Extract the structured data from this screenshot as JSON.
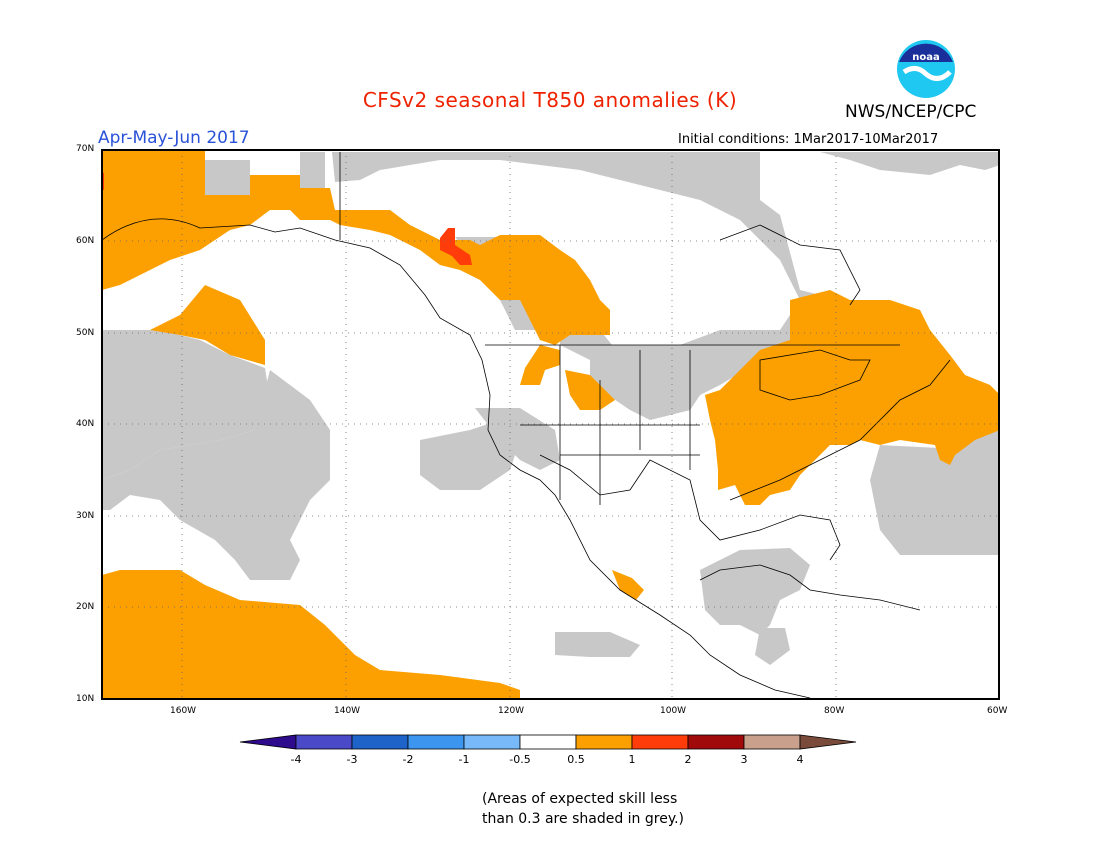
{
  "header": {
    "title": "CFSv2 seasonal T850 anomalies (K)",
    "agency": "NWS/NCEP/CPC",
    "period": "Apr-May-Jun 2017",
    "initial_conditions": "Initial conditions: 1Mar2017-10Mar2017",
    "logo_label": "noaa"
  },
  "map": {
    "lat_labels": [
      "70N",
      "60N",
      "50N",
      "40N",
      "30N",
      "20N",
      "10N"
    ],
    "lon_labels": [
      "160W",
      "140W",
      "120W",
      "100W",
      "80W",
      "60W"
    ],
    "region": "North America and eastern Pacific"
  },
  "legend": {
    "labels": [
      "-4",
      "-3",
      "-2",
      "-1",
      "-0.5",
      "0.5",
      "1",
      "2",
      "3",
      "4"
    ],
    "colors": [
      "#2e0a8c",
      "#4a4ac8",
      "#1e64c8",
      "#3c96f0",
      "#78b9fa",
      "#ffffff",
      "#fba000",
      "#ff3c0a",
      "#a00a0a",
      "#c8a08c",
      "#7a4a3a"
    ],
    "grey_color": "#c8c8c8",
    "orange_color": "#fba000",
    "red_color": "#ff3c0a"
  },
  "footnote": {
    "line1": "(Areas of expected skill less",
    "line2": "than 0.3 are shaded in grey.)"
  }
}
